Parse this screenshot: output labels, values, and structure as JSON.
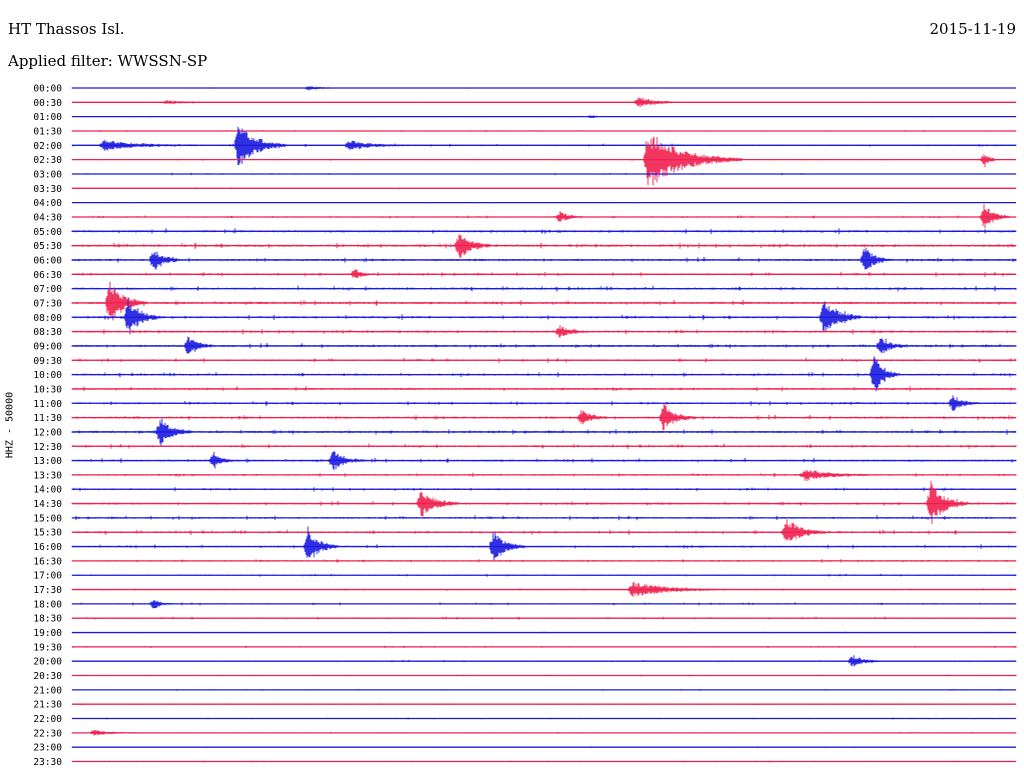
{
  "header": {
    "station": "HT Thassos Isl.",
    "date": "2015-11-19",
    "filter": "Applied filter: WWSSN-SP"
  },
  "chart_data": {
    "type": "line",
    "title": "HT Thassos Isl.",
    "subtitle": "Applied filter: WWSSN-SP",
    "date": "2015-11-19",
    "ylabel": "HHZ - 50000",
    "colors": {
      "even_rows": "#1a1adf",
      "odd_rows": "#f0204f"
    },
    "rows": [
      "00:00",
      "00:30",
      "01:00",
      "01:30",
      "02:00",
      "02:30",
      "03:00",
      "03:30",
      "04:00",
      "04:30",
      "05:00",
      "05:30",
      "06:00",
      "06:30",
      "07:00",
      "07:30",
      "08:00",
      "08:30",
      "09:00",
      "09:30",
      "10:00",
      "10:30",
      "11:00",
      "11:30",
      "12:00",
      "12:30",
      "13:00",
      "13:30",
      "14:00",
      "14:30",
      "15:00",
      "15:30",
      "16:00",
      "16:30",
      "17:00",
      "17:30",
      "18:00",
      "18:30",
      "19:00",
      "19:30",
      "20:00",
      "20:30",
      "21:00",
      "21:30",
      "22:00",
      "22:30",
      "23:00",
      "23:30"
    ],
    "row_duration_min": 30,
    "noise_level": [
      0.2,
      0.25,
      0.2,
      0.3,
      0.5,
      0.3,
      0.4,
      0.3,
      0.2,
      0.5,
      0.9,
      1.0,
      0.9,
      0.8,
      0.9,
      0.9,
      0.9,
      0.9,
      0.9,
      0.8,
      0.8,
      0.8,
      0.8,
      0.9,
      0.9,
      0.8,
      0.8,
      0.7,
      0.7,
      0.8,
      0.8,
      0.8,
      0.7,
      0.6,
      0.5,
      0.4,
      0.5,
      0.5,
      0.3,
      0.4,
      0.4,
      0.3,
      0.3,
      0.3,
      0.3,
      0.3,
      0.3,
      0.3
    ],
    "events": [
      {
        "row": 0,
        "minute": 7.5,
        "amp": 2,
        "dur": 1.5
      },
      {
        "row": 1,
        "minute": 3,
        "amp": 2,
        "dur": 2
      },
      {
        "row": 1,
        "minute": 18,
        "amp": 6,
        "dur": 1.5
      },
      {
        "row": 2,
        "minute": 16.5,
        "amp": 2,
        "dur": 0.5
      },
      {
        "row": 4,
        "minute": 1,
        "amp": 5,
        "dur": 3
      },
      {
        "row": 4,
        "minute": 5.3,
        "amp": 25,
        "dur": 1.5
      },
      {
        "row": 4,
        "minute": 8.8,
        "amp": 5,
        "dur": 2
      },
      {
        "row": 5,
        "minute": 18.3,
        "amp": 30,
        "dur": 3
      },
      {
        "row": 5,
        "minute": 29,
        "amp": 8,
        "dur": 0.5
      },
      {
        "row": 9,
        "minute": 15.5,
        "amp": 6,
        "dur": 0.8
      },
      {
        "row": 9,
        "minute": 29,
        "amp": 14,
        "dur": 0.8
      },
      {
        "row": 11,
        "minute": 12.3,
        "amp": 14,
        "dur": 1
      },
      {
        "row": 12,
        "minute": 2.6,
        "amp": 12,
        "dur": 0.8
      },
      {
        "row": 12,
        "minute": 25.2,
        "amp": 14,
        "dur": 0.8
      },
      {
        "row": 13,
        "minute": 9,
        "amp": 5,
        "dur": 0.6
      },
      {
        "row": 15,
        "minute": 1.2,
        "amp": 22,
        "dur": 1.2
      },
      {
        "row": 16,
        "minute": 1.8,
        "amp": 20,
        "dur": 1
      },
      {
        "row": 16,
        "minute": 23.9,
        "amp": 20,
        "dur": 1.2
      },
      {
        "row": 17,
        "minute": 15.5,
        "amp": 6,
        "dur": 0.8
      },
      {
        "row": 18,
        "minute": 3.7,
        "amp": 10,
        "dur": 0.8
      },
      {
        "row": 18,
        "minute": 25.7,
        "amp": 10,
        "dur": 0.8
      },
      {
        "row": 20,
        "minute": 25.5,
        "amp": 20,
        "dur": 0.8
      },
      {
        "row": 22,
        "minute": 28,
        "amp": 8,
        "dur": 0.8
      },
      {
        "row": 23,
        "minute": 16.2,
        "amp": 8,
        "dur": 0.8
      },
      {
        "row": 23,
        "minute": 18.8,
        "amp": 14,
        "dur": 1
      },
      {
        "row": 24,
        "minute": 2.8,
        "amp": 14,
        "dur": 1
      },
      {
        "row": 26,
        "minute": 4.5,
        "amp": 10,
        "dur": 0.6
      },
      {
        "row": 26,
        "minute": 8.3,
        "amp": 10,
        "dur": 1
      },
      {
        "row": 27,
        "minute": 23.3,
        "amp": 6,
        "dur": 2
      },
      {
        "row": 29,
        "minute": 11.1,
        "amp": 14,
        "dur": 1.2
      },
      {
        "row": 29,
        "minute": 27.3,
        "amp": 22,
        "dur": 1.2
      },
      {
        "row": 31,
        "minute": 22.7,
        "amp": 14,
        "dur": 1.2
      },
      {
        "row": 32,
        "minute": 7.5,
        "amp": 18,
        "dur": 1
      },
      {
        "row": 32,
        "minute": 13.4,
        "amp": 16,
        "dur": 1
      },
      {
        "row": 35,
        "minute": 17.8,
        "amp": 8,
        "dur": 3
      },
      {
        "row": 36,
        "minute": 2.6,
        "amp": 5,
        "dur": 0.6
      },
      {
        "row": 40,
        "minute": 24.8,
        "amp": 6,
        "dur": 1
      },
      {
        "row": 45,
        "minute": 0.7,
        "amp": 3,
        "dur": 1.5
      }
    ]
  }
}
